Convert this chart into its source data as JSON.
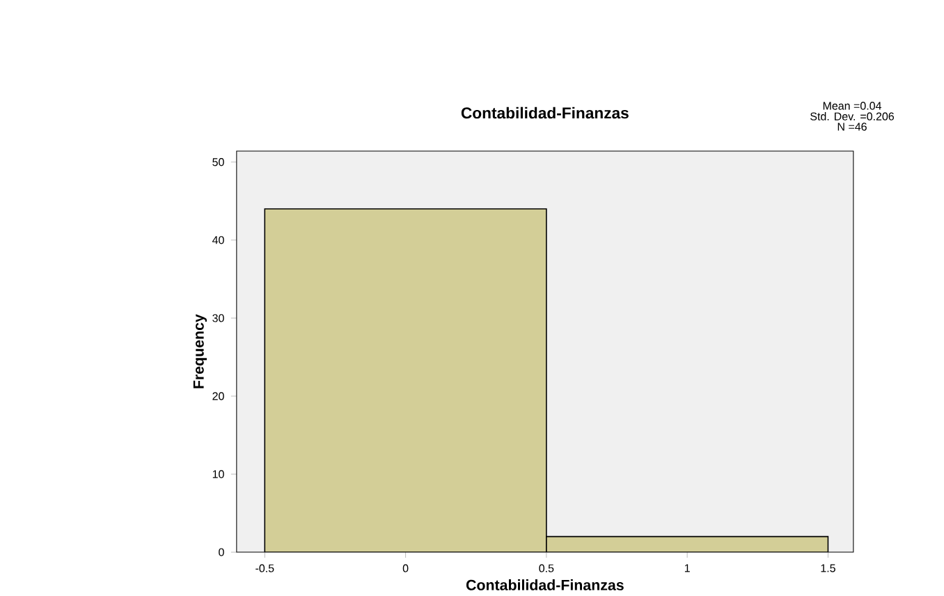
{
  "chart_data": {
    "type": "histogram",
    "title": "Contabilidad-Finanzas",
    "xlabel": "Contabilidad-Finanzas",
    "ylabel": "Frequency",
    "bins": [
      -0.5,
      0.5,
      1.5
    ],
    "values": [
      44,
      2
    ],
    "color": "#d3ce97",
    "xlim": [
      -0.6,
      1.59
    ],
    "ylim": [
      0,
      51.4
    ],
    "xticks": [
      -0.5,
      0,
      0.5,
      1,
      1.5
    ],
    "yticks": [
      0,
      10,
      20,
      30,
      40,
      50
    ],
    "annotations": [
      "Mean =0.04",
      "Std. Dev. =0.206",
      "N =46"
    ]
  }
}
